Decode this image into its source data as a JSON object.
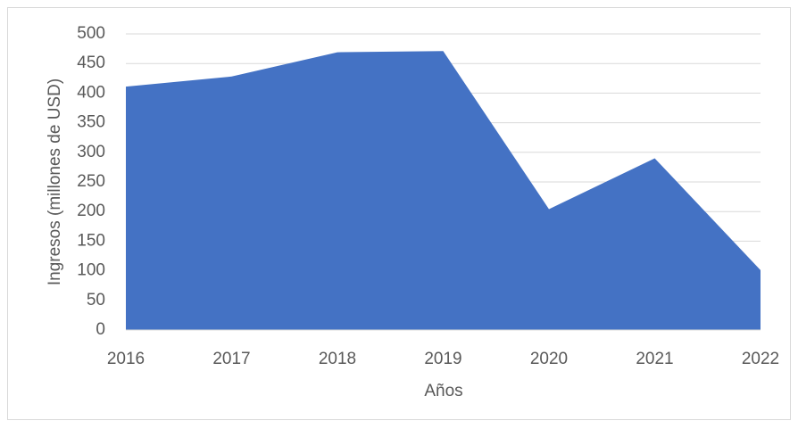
{
  "chart_data": {
    "type": "area",
    "xlabel": "Años",
    "ylabel": "Ingresos (millones de USD)",
    "categories": [
      "2016",
      "2017",
      "2018",
      "2019",
      "2020",
      "2021",
      "2022"
    ],
    "values": [
      411,
      428,
      469,
      471,
      204,
      290,
      101
    ],
    "color": "#4472c4",
    "ylim": [
      0,
      500
    ],
    "yticks": [
      0,
      50,
      100,
      150,
      200,
      250,
      300,
      350,
      400,
      450,
      500
    ],
    "grid": true
  }
}
